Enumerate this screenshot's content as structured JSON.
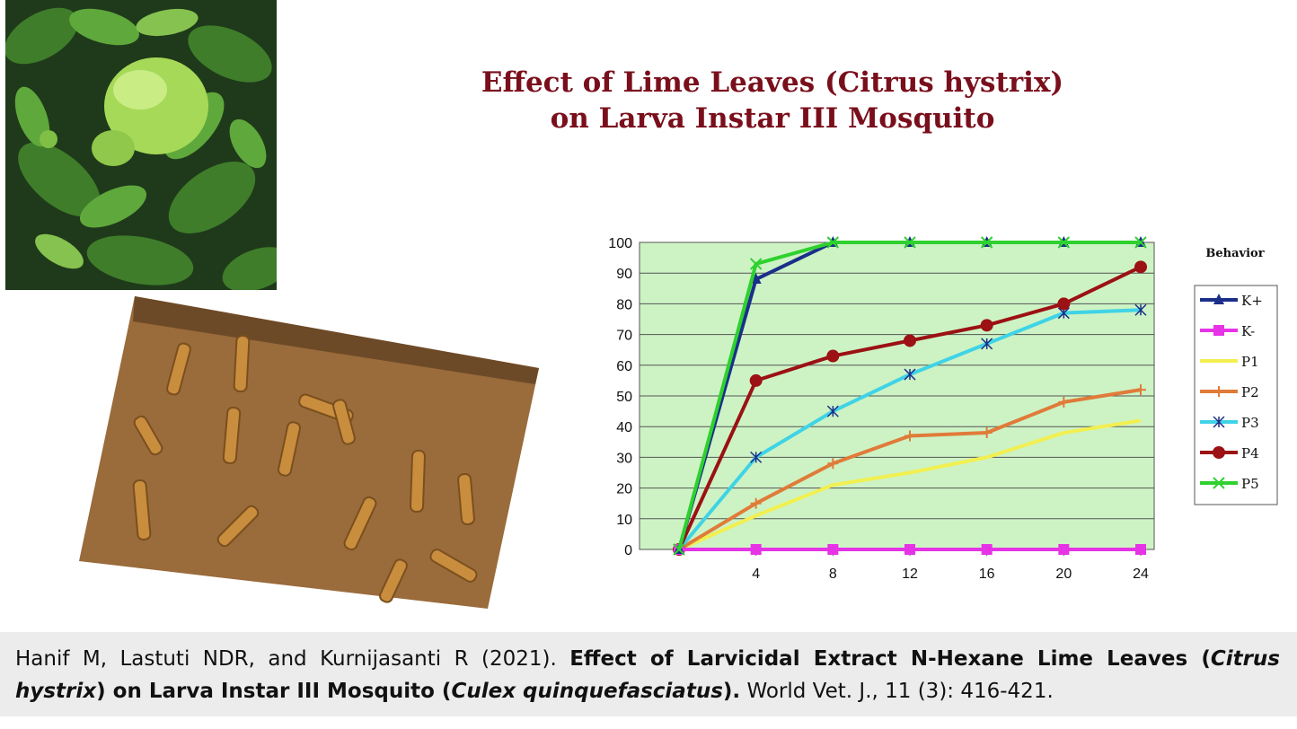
{
  "figure": {
    "title_line1": "Effect of Lime Leaves (Citrus hystrix)",
    "title_line2": "on Larva Instar III Mosquito"
  },
  "citation": {
    "authors": "Hanif M, Lastuti NDR, and Kurnijasanti R (2021).",
    "title_part1": "Effect of Larvicidal Extract N-Hexane Lime Leaves (",
    "title_italic1": "Citrus hystrix",
    "title_part2": ") on Larva Instar III Mosquito (",
    "title_italic2": "Culex quinquefasciatus",
    "title_part3": ").",
    "journal": "World Vet. J., 11 (3): 416-421."
  },
  "chart_data": {
    "type": "line",
    "title": "",
    "xlabel": "",
    "ylabel": "",
    "x": [
      0,
      4,
      8,
      12,
      16,
      20,
      24
    ],
    "x_tick_labels": [
      "4",
      "8",
      "12",
      "16",
      "20",
      "24"
    ],
    "ylim": [
      0,
      100
    ],
    "y_ticks": [
      0,
      10,
      20,
      30,
      40,
      50,
      60,
      70,
      80,
      90,
      100
    ],
    "grid": true,
    "legend_title": "Behavior",
    "legend_position": "right",
    "series": [
      {
        "name": "K+",
        "color": "#1a2f8a",
        "marker": "triangle",
        "values": [
          0,
          88,
          100,
          100,
          100,
          100,
          100
        ]
      },
      {
        "name": "K-",
        "color": "#e633e6",
        "marker": "square",
        "values": [
          0,
          0,
          0,
          0,
          0,
          0,
          0
        ]
      },
      {
        "name": "P1",
        "color": "#f2ef50",
        "marker": "none",
        "values": [
          0,
          11,
          21,
          25,
          30,
          38,
          42
        ]
      },
      {
        "name": "P2",
        "color": "#e07b39",
        "marker": "plus",
        "values": [
          0,
          15,
          28,
          37,
          38,
          48,
          52
        ]
      },
      {
        "name": "P3",
        "color": "#3fd3e6",
        "marker": "star",
        "values": [
          0,
          30,
          45,
          57,
          67,
          77,
          78
        ]
      },
      {
        "name": "P4",
        "color": "#9b1114",
        "marker": "circle",
        "values": [
          0,
          55,
          63,
          68,
          73,
          80,
          92
        ]
      },
      {
        "name": "P5",
        "color": "#2ed12e",
        "marker": "x",
        "values": [
          0,
          93,
          100,
          100,
          100,
          100,
          100
        ]
      }
    ]
  }
}
